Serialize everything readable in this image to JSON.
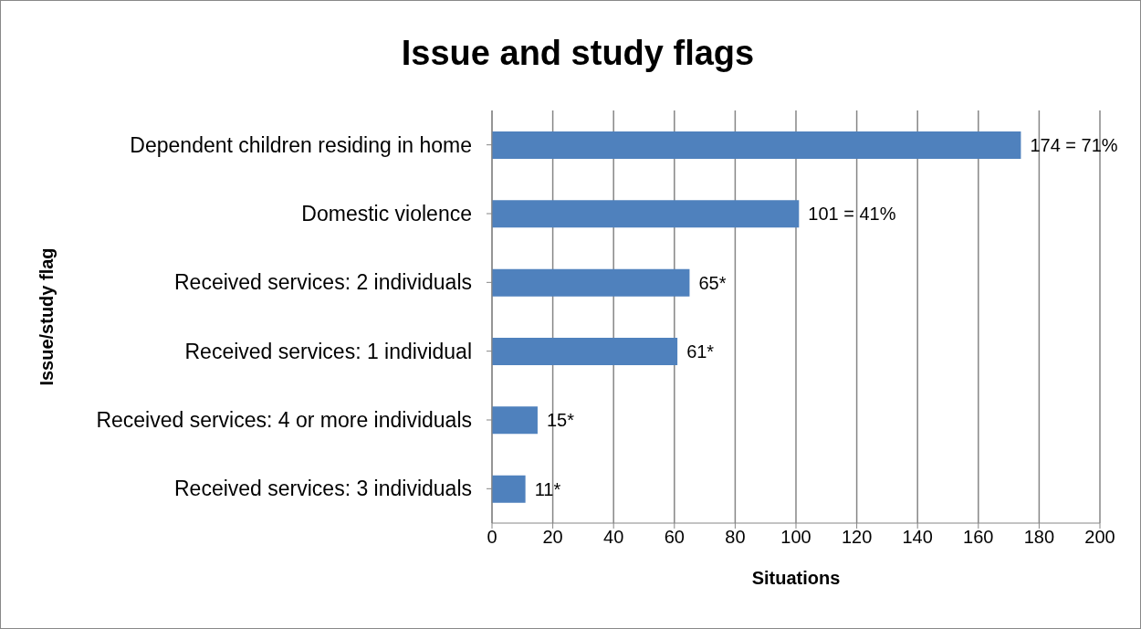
{
  "chart_data": {
    "type": "bar",
    "orientation": "horizontal",
    "title": "Issue and study flags",
    "xlabel": "Situations",
    "ylabel": "Issue/study flag",
    "categories": [
      "Dependent children residing in home",
      "Domestic violence",
      "Received services: 2 individuals",
      "Received services: 1 individual",
      "Received services: 4 or more individuals",
      "Received services: 3 individuals"
    ],
    "values": [
      174,
      101,
      65,
      61,
      15,
      11
    ],
    "value_labels": [
      "174 = 71%",
      "101 = 41%",
      "65*",
      "61*",
      "15*",
      "11*"
    ],
    "color": "#4f81bd",
    "xlim": [
      0,
      200
    ],
    "xticks": [
      0,
      20,
      40,
      60,
      80,
      100,
      120,
      140,
      160,
      180,
      200
    ],
    "grid": "x",
    "legend": false
  }
}
